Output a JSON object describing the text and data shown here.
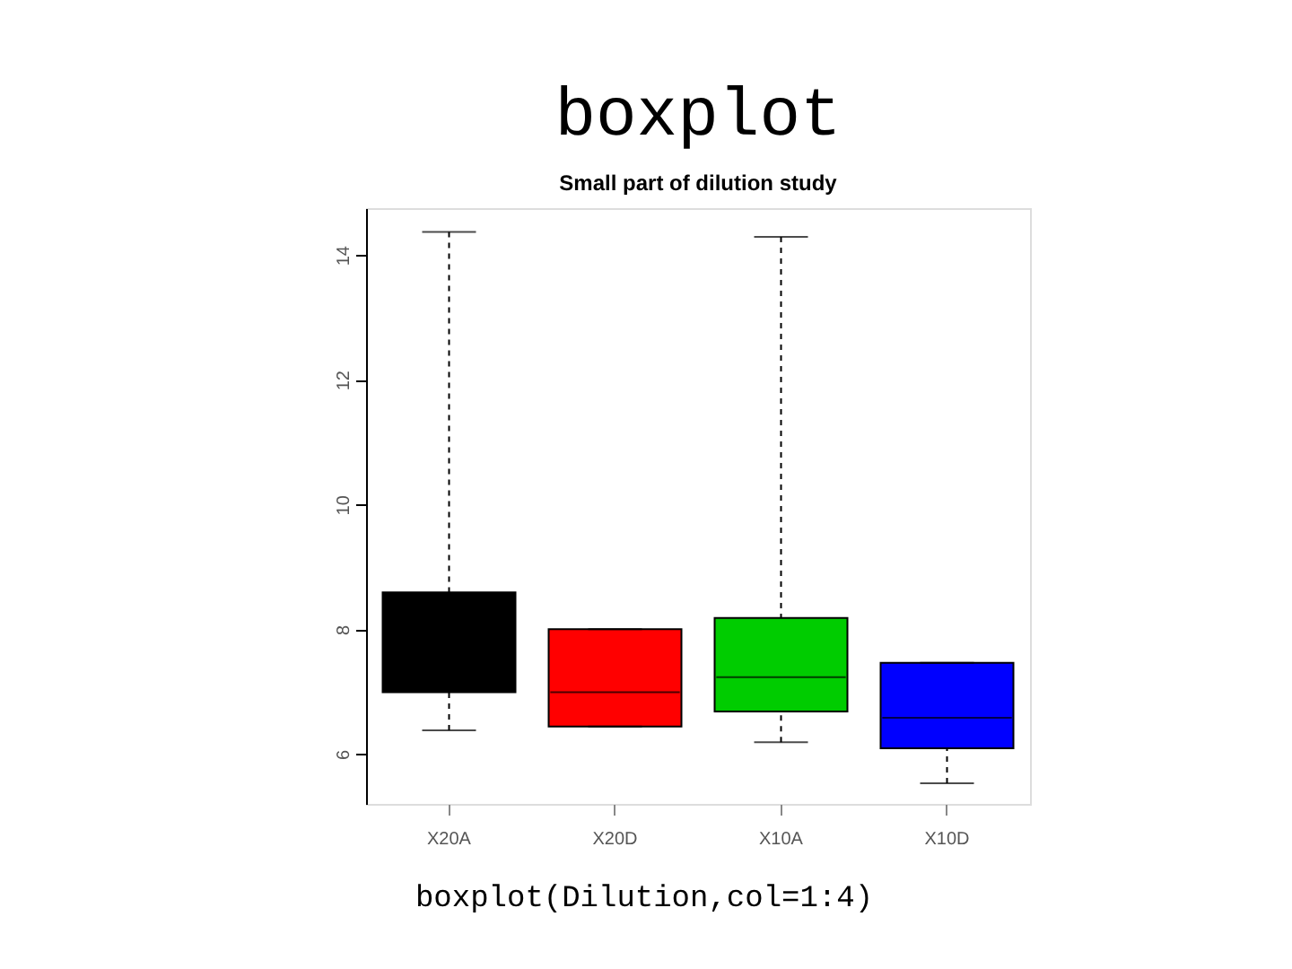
{
  "chart_data": {
    "type": "box",
    "title": "boxplot",
    "subtitle": "Small part of dilution study",
    "categories": [
      "X20A",
      "X20D",
      "X10A",
      "X10D"
    ],
    "colors": [
      "#000000",
      "#ff0000",
      "#00cc00",
      "#0000ff"
    ],
    "boxes": [
      {
        "low": 6.38,
        "q1": 6.99,
        "median": 7.6,
        "q3": 8.59,
        "high": 14.37
      },
      {
        "low": 6.44,
        "q1": 6.44,
        "median": 6.99,
        "q3": 8.0,
        "high": 8.0
      },
      {
        "low": 6.19,
        "q1": 6.68,
        "median": 7.23,
        "q3": 8.18,
        "high": 14.29
      },
      {
        "low": 5.53,
        "q1": 6.09,
        "median": 6.58,
        "q3": 7.46,
        "high": 7.46
      }
    ],
    "ylim": [
      5.2,
      14.75
    ],
    "yticks": [
      6,
      8,
      10,
      12,
      14
    ],
    "grid": false,
    "annotations": [
      "boxplot(Dilution,col=1:4)"
    ]
  }
}
